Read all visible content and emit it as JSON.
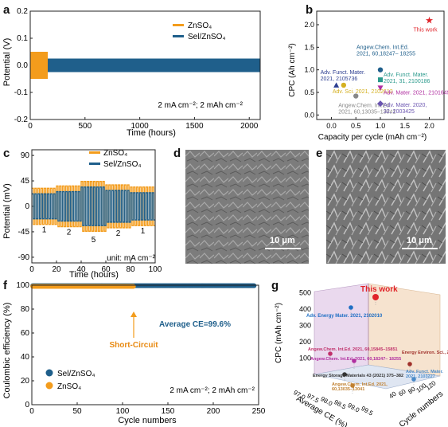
{
  "panels": {
    "a": {
      "label": "a",
      "chart_data": {
        "type": "line",
        "xlabel": "Time (hours)",
        "ylabel": "Potential (V)",
        "xlim": [
          0,
          2100
        ],
        "ylim": [
          -0.2,
          0.2
        ],
        "xticks": [
          "0",
          "500",
          "1000",
          "1500",
          "2000"
        ],
        "yticks": [
          "-0.2",
          "-0.1",
          "0.0",
          "0.1",
          "0.2"
        ],
        "series": [
          {
            "name": "ZnSO4",
            "color": "#f39c1c",
            "x_range": [
              0,
              160
            ],
            "amplitude": 0.05
          },
          {
            "name": "Sel/ZnSO4",
            "color": "#1f5f8b",
            "x_range": [
              0,
              2100
            ],
            "amplitude": 0.025
          }
        ],
        "legend": [
          "ZnSO₄",
          "Sel/ZnSO₄"
        ],
        "legend_position": "top-right",
        "annotation": "2 mA cm⁻²; 2 mAh cm⁻²"
      }
    },
    "b": {
      "label": "b",
      "chart_data": {
        "type": "scatter",
        "xlabel": "Capacity per cycle (mAh cm⁻²)",
        "ylabel": "CPC (Ah cm⁻²)",
        "xlim": [
          -0.3,
          2.3
        ],
        "ylim": [
          -0.1,
          2.3
        ],
        "xticks": [
          "0.0",
          "0.5",
          "1.0",
          "1.5",
          "2.0"
        ],
        "yticks": [
          "0.0",
          "0.5",
          "1.0",
          "1.5",
          "2.0"
        ],
        "points": [
          {
            "x": 2.0,
            "y": 2.1,
            "marker": "star",
            "color": "#e0242a",
            "label": "This work"
          },
          {
            "x": 0.1,
            "y": 0.66,
            "marker": "triangle",
            "color": "#2c3e91",
            "label": "Adv. Funct. Mater.\n2021, 2105736"
          },
          {
            "x": 0.25,
            "y": 0.66,
            "marker": "circle",
            "color": "#d4b020",
            "label": "Adv. Sci. 2021, 2102612"
          },
          {
            "x": 1.0,
            "y": 1.0,
            "marker": "circle",
            "color": "#1f5f8b",
            "label": "Angew.Chem. Int.Ed.\n2021, 60,18247– 18255"
          },
          {
            "x": 1.0,
            "y": 0.78,
            "marker": "square",
            "color": "#2a9a8c",
            "label": "Adv. Funct. Mater.\n2021, 31, 2100186"
          },
          {
            "x": 1.0,
            "y": 0.6,
            "marker": "triangle-down",
            "color": "#b02fa0",
            "label": "Adv. Mater. 2021, 2101649"
          },
          {
            "x": 0.5,
            "y": 0.42,
            "marker": "circle",
            "color": "#888888",
            "label": "Angew.Chem. Int.Ed.\n2021, 60,13035–13041"
          },
          {
            "x": 1.0,
            "y": 0.25,
            "marker": "diamond",
            "color": "#6a54b0",
            "label": "Adv. Mater. 2020,\n32, 2003425"
          }
        ]
      }
    },
    "c": {
      "label": "c",
      "chart_data": {
        "type": "line",
        "xlabel": "Time (hours)",
        "ylabel": "Potential (mV)",
        "xlim": [
          0,
          100
        ],
        "ylim": [
          -100,
          100
        ],
        "xticks": [
          "0",
          "20",
          "40",
          "60",
          "80",
          "100"
        ],
        "yticks": [
          "-90",
          "-45",
          "0",
          "45",
          "90"
        ],
        "rate_labels": [
          "1",
          "2",
          "5",
          "2",
          "1"
        ],
        "series": [
          {
            "name": "ZnSO4",
            "color": "#f39c1c",
            "amplitudes": [
              32,
              36,
              44,
              38,
              34
            ]
          },
          {
            "name": "Sel/ZnSO4",
            "color": "#1f5f8b",
            "amplitudes": [
              22,
              26,
              34,
              28,
              24
            ]
          }
        ],
        "legend": [
          "ZnSO₄",
          "Sel/ZnSO₄"
        ],
        "annotation": "unit: mA cm⁻²"
      }
    },
    "d": {
      "label": "d",
      "scale": "10 μm"
    },
    "e": {
      "label": "e",
      "scale": "10 μm"
    },
    "f": {
      "label": "f",
      "chart_data": {
        "type": "scatter",
        "xlabel": "Cycle numbers",
        "ylabel": "Coulombic efficiency (%)",
        "xlim": [
          0,
          250
        ],
        "ylim": [
          0,
          100
        ],
        "xticks": [
          "0",
          "50",
          "100",
          "150",
          "200",
          "250"
        ],
        "yticks": [
          "0",
          "20",
          "40",
          "60",
          "80",
          "100"
        ],
        "series": [
          {
            "name": "Sel/ZnSO4",
            "color": "#1f5f8b",
            "x_range": [
              1,
              245
            ],
            "value": 99.6
          },
          {
            "name": "ZnSO4",
            "color": "#f39c1c",
            "x_range": [
              1,
              112
            ],
            "value": 99.0
          }
        ],
        "legend": [
          "Sel/ZnSO₄",
          "ZnSO₄"
        ],
        "short_circuit_label": "Short-Circuit",
        "average_label": "Average CE=99.6%",
        "annotation": "2 mA cm⁻²; 2 mAh cm⁻²"
      }
    },
    "g": {
      "label": "g",
      "chart_data": {
        "type": "scatter",
        "zlabel": "CPC (mAh cm⁻²)",
        "xlabel": "Average CE (%)",
        "ylabel": "Cycle numbers",
        "zticks": [
          "100",
          "200",
          "300",
          "400",
          "500"
        ],
        "xticks": [
          "97.0",
          "97.5",
          "98.0",
          "98.5",
          "99.0",
          "99.5"
        ],
        "yticks": [
          "40",
          "60",
          "80",
          "100",
          "120"
        ],
        "points": [
          {
            "label": "This work",
            "color": "#e0242a"
          },
          {
            "label": "Adv. Energy Mater. 2021, 2102010",
            "color": "#1f6fc4"
          },
          {
            "label": "Angew.Chem. Int.Ed. 2021, 60,15845–15851",
            "color": "#c0306a"
          },
          {
            "label": "Angew.Chem. Int.Ed. 2021, 60,18247– 18255",
            "color": "#b02fa0"
          },
          {
            "label": "Energy Environ. Sci., 2021, 14, 3609",
            "color": "#a0302a"
          },
          {
            "label": "Energy Storage Materials 43 (2021) 375–382",
            "color": "#333333"
          },
          {
            "label": "Angew.Chem. Int.Ed. 2021,\n60,13035–13041",
            "color": "#c08030"
          },
          {
            "label": "Adv. Funct. Mater.\n2021, 2103227",
            "color": "#4a8ac8"
          }
        ]
      }
    }
  }
}
